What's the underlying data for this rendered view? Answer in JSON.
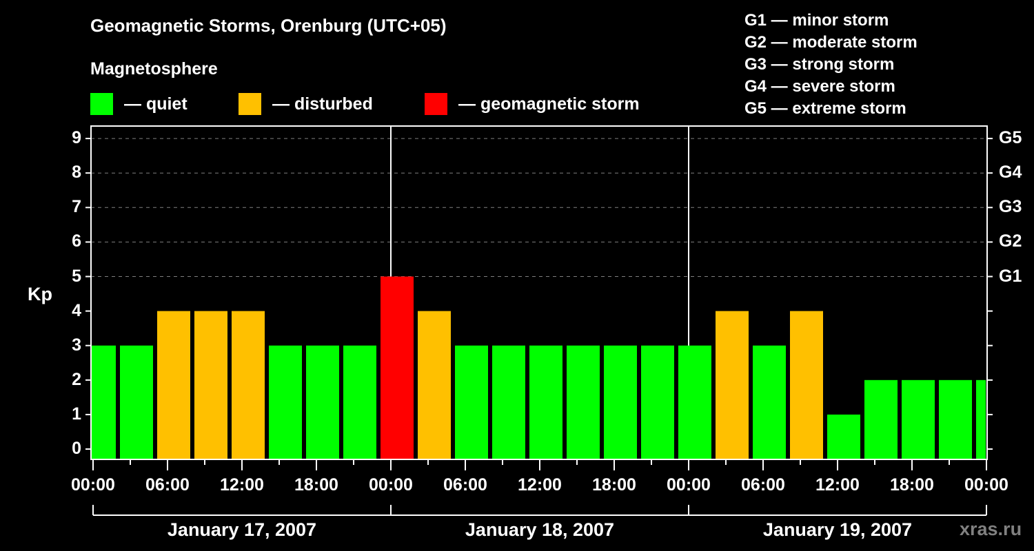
{
  "title": "Geomagnetic Storms, Orenburg (UTC+05)",
  "subtitle": "Magnetosphere",
  "legend": [
    {
      "label": "— quiet",
      "color": "#00ff00"
    },
    {
      "label": "— disturbed",
      "color": "#ffc000"
    },
    {
      "label": "— geomagnetic storm",
      "color": "#ff0000"
    }
  ],
  "g_scale": [
    "G1 — minor storm",
    "G2 — moderate storm",
    "G3 — strong storm",
    "G4 — severe storm",
    "G5 — extreme storm"
  ],
  "watermark": "xras.ru",
  "chart_data": {
    "type": "bar",
    "title": "Geomagnetic Storms, Orenburg (UTC+05)",
    "xlabel": "",
    "ylabel": "Kp",
    "ylim": [
      0,
      9
    ],
    "yticks": [
      "0",
      "1",
      "2",
      "3",
      "4",
      "5",
      "6",
      "7",
      "8",
      "9"
    ],
    "right_axis_labels": [
      {
        "kp": 5,
        "label": "G1"
      },
      {
        "kp": 6,
        "label": "G2"
      },
      {
        "kp": 7,
        "label": "G3"
      },
      {
        "kp": 8,
        "label": "G4"
      },
      {
        "kp": 9,
        "label": "G5"
      }
    ],
    "x_tick_labels": [
      "00:00",
      "06:00",
      "12:00",
      "18:00",
      "00:00",
      "06:00",
      "12:00",
      "18:00",
      "00:00",
      "06:00",
      "12:00",
      "18:00",
      "00:00"
    ],
    "days": [
      "January 17, 2007",
      "January 18, 2007",
      "January 19, 2007"
    ],
    "interval_hours": 3,
    "categories": [
      "Jan 17 00:00",
      "Jan 17 03:00",
      "Jan 17 06:00",
      "Jan 17 09:00",
      "Jan 17 12:00",
      "Jan 17 15:00",
      "Jan 17 18:00",
      "Jan 17 21:00",
      "Jan 18 00:00",
      "Jan 18 03:00",
      "Jan 18 06:00",
      "Jan 18 09:00",
      "Jan 18 12:00",
      "Jan 18 15:00",
      "Jan 18 18:00",
      "Jan 18 21:00",
      "Jan 19 00:00",
      "Jan 19 03:00",
      "Jan 19 06:00",
      "Jan 19 09:00",
      "Jan 19 12:00",
      "Jan 19 15:00",
      "Jan 19 18:00",
      "Jan 19 21:00",
      "Jan 20 00:00"
    ],
    "values": [
      3,
      3,
      4,
      4,
      4,
      3,
      3,
      3,
      5,
      4,
      3,
      3,
      3,
      3,
      3,
      3,
      3,
      4,
      3,
      4,
      1,
      2,
      2,
      2,
      2
    ],
    "color_rule": {
      "quiet": "Kp<=3",
      "disturbed": "Kp=4",
      "storm": "Kp>=5"
    },
    "grid": "dashed horizontal at each Kp from 5 to 9",
    "legend_position": "top"
  }
}
